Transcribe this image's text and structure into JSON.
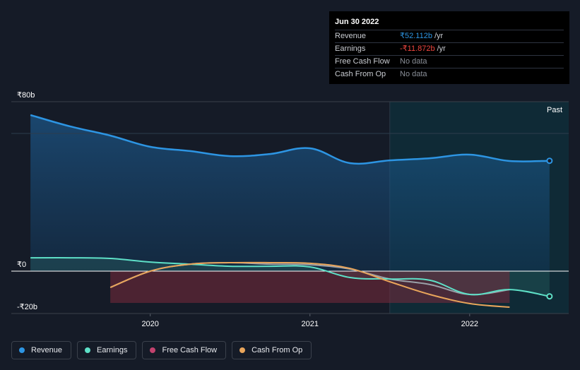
{
  "tooltip": {
    "date": "Jun 30 2022",
    "rows": [
      {
        "label": "Revenue",
        "value": "₹52.112b",
        "unit": "/yr"
      },
      {
        "label": "Earnings",
        "value": "-₹11.872b",
        "unit": "/yr"
      },
      {
        "label": "Free Cash Flow",
        "value": "No data",
        "unit": ""
      },
      {
        "label": "Cash From Op",
        "value": "No data",
        "unit": ""
      }
    ]
  },
  "past_label": "Past",
  "legend": [
    {
      "label": "Revenue",
      "color": "#2d95e3"
    },
    {
      "label": "Earnings",
      "color": "#5ee0c7"
    },
    {
      "label": "Free Cash Flow",
      "color": "#c2426e"
    },
    {
      "label": "Cash From Op",
      "color": "#e9a55b"
    }
  ],
  "chart_data": {
    "type": "line",
    "title": "",
    "xlabel": "",
    "ylabel": "",
    "ylim": [
      -20,
      80
    ],
    "y_ticks": [
      {
        "value": 80,
        "label": "₹80b"
      },
      {
        "value": 0,
        "label": "₹0"
      },
      {
        "value": -20,
        "label": "-₹20b"
      }
    ],
    "x_ticks": [
      {
        "value": 2020.0,
        "label": "2020"
      },
      {
        "value": 2021.0,
        "label": "2021"
      },
      {
        "value": 2022.0,
        "label": "2022"
      }
    ],
    "xlim": [
      2019.13,
      2022.62
    ],
    "past_region_start": 2021.5,
    "series": [
      {
        "name": "Revenue",
        "color": "#2d95e3",
        "x": [
          2019.25,
          2019.5,
          2019.75,
          2020.0,
          2020.25,
          2020.5,
          2020.75,
          2021.0,
          2021.25,
          2021.5,
          2021.75,
          2022.0,
          2022.25,
          2022.5
        ],
        "y": [
          73.7,
          68.3,
          64.0,
          58.7,
          56.7,
          54.3,
          55.3,
          58.0,
          51.0,
          52.3,
          53.3,
          55.0,
          52.0,
          52.1
        ]
      },
      {
        "name": "Earnings",
        "color": "#5ee0c7",
        "x": [
          2019.25,
          2019.5,
          2019.75,
          2020.0,
          2020.25,
          2020.5,
          2020.75,
          2021.0,
          2021.25,
          2021.5,
          2021.75,
          2022.0,
          2022.25,
          2022.5
        ],
        "y": [
          6.3,
          6.3,
          6.0,
          4.3,
          3.3,
          2.3,
          2.3,
          2.0,
          -3.0,
          -3.7,
          -4.3,
          -11.0,
          -8.7,
          -11.9
        ]
      },
      {
        "name": "Free Cash Flow",
        "color": "#c2426e",
        "x": [
          2019.75,
          2020.0,
          2020.25,
          2020.5,
          2020.75,
          2021.0,
          2021.25,
          2021.5,
          2021.75,
          2022.0,
          2022.25
        ],
        "y": [
          -7.7,
          0.0,
          3.3,
          4.0,
          3.3,
          3.0,
          1.0,
          -3.7,
          -6.3,
          -11.0,
          -8.7
        ]
      },
      {
        "name": "Cash From Op",
        "color": "#e9a55b",
        "x": [
          2019.75,
          2020.0,
          2020.25,
          2020.5,
          2020.75,
          2021.0,
          2021.25,
          2021.5,
          2021.75,
          2022.0,
          2022.25
        ],
        "y": [
          -7.7,
          0.0,
          3.3,
          4.0,
          4.0,
          3.7,
          1.3,
          -5.0,
          -11.0,
          -15.3,
          -17.0
        ]
      }
    ]
  }
}
